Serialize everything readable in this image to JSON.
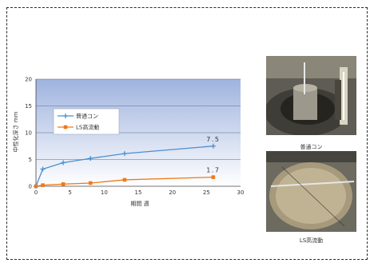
{
  "chart_data": {
    "type": "line",
    "xlabel": "期間 週",
    "ylabel": "中性化深さ mm",
    "xlim": [
      0,
      30
    ],
    "ylim": [
      0,
      20
    ],
    "xticks": [
      0,
      5,
      10,
      15,
      20,
      25,
      30
    ],
    "yticks": [
      0,
      5,
      10,
      15,
      20
    ],
    "grid": true,
    "legend_position": "left",
    "series": [
      {
        "name": "普通コン",
        "color": "#4a8fd0",
        "marker": "plus",
        "x": [
          0,
          1,
          4,
          8,
          13,
          26
        ],
        "y": [
          0,
          3.2,
          4.4,
          5.2,
          6.1,
          7.5
        ],
        "end_label": "7.5"
      },
      {
        "name": "LS高流動",
        "color": "#f07a1a",
        "marker": "square",
        "x": [
          0,
          1,
          4,
          8,
          13,
          26
        ],
        "y": [
          0,
          0.2,
          0.4,
          0.6,
          1.2,
          1.7
        ],
        "end_label": "1.7"
      }
    ]
  },
  "photos": [
    {
      "caption": "普通コン",
      "icon": "concrete-sample-photo"
    },
    {
      "caption": "LS高流動",
      "icon": "flow-test-photo"
    }
  ]
}
